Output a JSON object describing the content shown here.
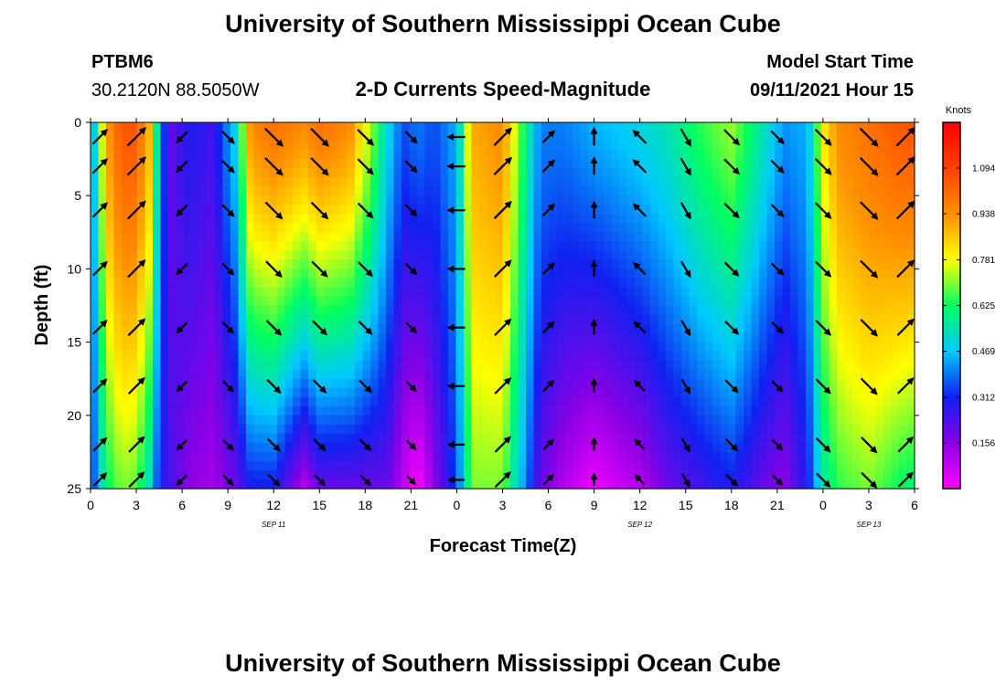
{
  "header": {
    "title": "University of Southern Mississippi Ocean Cube",
    "station": "PTBM6",
    "coords": "30.2120N  88.5050W",
    "subtitle": "2-D Currents Speed-Magnitude",
    "model_start_label": "Model Start Time",
    "model_start_value": "09/11/2021 Hour 15"
  },
  "footer": {
    "title": "University of Southern Mississippi Ocean Cube"
  },
  "colorbar": {
    "unit": "Knots",
    "ticks": [
      "1.094",
      "0.938",
      "0.781",
      "0.625",
      "0.469",
      "0.312",
      "0.156"
    ],
    "tick_values": [
      1.094,
      0.938,
      0.781,
      0.625,
      0.469,
      0.312,
      0.156
    ],
    "range": [
      0,
      1.25
    ],
    "colors": [
      "#ff00ff",
      "#8a00e6",
      "#1020f0",
      "#00c8ff",
      "#00ff60",
      "#ffff00",
      "#ff9000",
      "#ff4000",
      "#ff0000"
    ]
  },
  "chart_data": {
    "type": "heatmap",
    "title": "2-D Currents Speed-Magnitude",
    "xlabel": "Forecast Time(Z)",
    "ylabel": "Depth (ft)",
    "x_range_hours": [
      0,
      54
    ],
    "y_range_ft": [
      0,
      25
    ],
    "y_ticks": [
      "0",
      "5",
      "10",
      "15",
      "20",
      "25"
    ],
    "x_ticks": [
      "0",
      "3",
      "6",
      "9",
      "12",
      "15",
      "18",
      "21",
      "0",
      "3",
      "6",
      "9",
      "12",
      "15",
      "18",
      "21",
      "0",
      "3",
      "6"
    ],
    "date_labels": [
      {
        "label": "SEP 11",
        "hour": 12
      },
      {
        "label": "SEP 12",
        "hour": 36
      },
      {
        "label": "SEP 13",
        "hour": 51
      }
    ],
    "time_profiles": [
      {
        "t": 0,
        "surface": 0.4,
        "bottom": 0.3
      },
      {
        "t": 0.5,
        "surface": 0.6,
        "bottom": 0.45
      },
      {
        "t": 1,
        "surface": 0.9,
        "bottom": 0.6
      },
      {
        "t": 2,
        "surface": 1.05,
        "bottom": 0.7
      },
      {
        "t": 3,
        "surface": 1.05,
        "bottom": 0.68
      },
      {
        "t": 4,
        "surface": 0.85,
        "bottom": 0.5
      },
      {
        "t": 4.5,
        "surface": 0.45,
        "bottom": 0.3
      },
      {
        "t": 5.2,
        "surface": 0.2,
        "bottom": 0.25
      },
      {
        "t": 6.5,
        "surface": 0.3,
        "bottom": 0.15
      },
      {
        "t": 8,
        "surface": 0.25,
        "bottom": 0.12
      },
      {
        "t": 9.5,
        "surface": 0.5,
        "bottom": 0.2
      },
      {
        "t": 10.5,
        "surface": 0.95,
        "bottom": 0.3
      },
      {
        "t": 12,
        "surface": 1.0,
        "bottom": 0.3
      },
      {
        "t": 14,
        "surface": 0.95,
        "bottom": 0.1
      },
      {
        "t": 15,
        "surface": 1.0,
        "bottom": 0.2
      },
      {
        "t": 17,
        "surface": 0.95,
        "bottom": 0.2
      },
      {
        "t": 18.5,
        "surface": 0.7,
        "bottom": 0.2
      },
      {
        "t": 19.5,
        "surface": 0.5,
        "bottom": 0.2
      },
      {
        "t": 20.5,
        "surface": 0.35,
        "bottom": 0.08
      },
      {
        "t": 21.5,
        "surface": 0.4,
        "bottom": 0.0
      },
      {
        "t": 22.5,
        "surface": 0.35,
        "bottom": 0.15
      },
      {
        "t": 24,
        "surface": 0.45,
        "bottom": 0.35
      },
      {
        "t": 25,
        "surface": 0.9,
        "bottom": 0.7
      },
      {
        "t": 27,
        "surface": 0.95,
        "bottom": 0.7
      },
      {
        "t": 28.5,
        "surface": 0.6,
        "bottom": 0.4
      },
      {
        "t": 29.5,
        "surface": 0.4,
        "bottom": 0.2
      },
      {
        "t": 31,
        "surface": 0.4,
        "bottom": 0.1
      },
      {
        "t": 33,
        "surface": 0.45,
        "bottom": 0.02
      },
      {
        "t": 36,
        "surface": 0.5,
        "bottom": 0.1
      },
      {
        "t": 38,
        "surface": 0.55,
        "bottom": 0.2
      },
      {
        "t": 40,
        "surface": 0.65,
        "bottom": 0.25
      },
      {
        "t": 42,
        "surface": 0.72,
        "bottom": 0.3
      },
      {
        "t": 44,
        "surface": 0.55,
        "bottom": 0.2
      },
      {
        "t": 45.5,
        "surface": 0.42,
        "bottom": 0.15
      },
      {
        "t": 47,
        "surface": 0.45,
        "bottom": 0.3
      },
      {
        "t": 48,
        "surface": 0.8,
        "bottom": 0.55
      },
      {
        "t": 49,
        "surface": 0.95,
        "bottom": 0.65
      },
      {
        "t": 51,
        "surface": 1.0,
        "bottom": 0.7
      },
      {
        "t": 53,
        "surface": 1.05,
        "bottom": 0.62
      },
      {
        "t": 54,
        "surface": 1.05,
        "bottom": 0.6
      }
    ],
    "vectors": {
      "time_step_hours": 3,
      "depths_ft": [
        1,
        3,
        6,
        10,
        14,
        18,
        22,
        25
      ],
      "direction_sequence": [
        45,
        45,
        225,
        315,
        315,
        315,
        315,
        315,
        180,
        45,
        45,
        90,
        135,
        300,
        315,
        315,
        315,
        315,
        45
      ],
      "speed_max": 1.094
    }
  }
}
